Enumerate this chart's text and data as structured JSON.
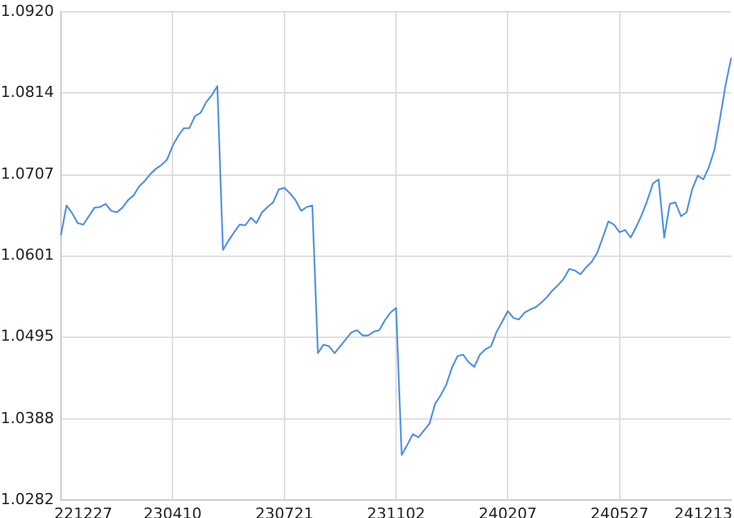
{
  "chart_data": {
    "type": "line",
    "categories": [
      null,
      null,
      null,
      null,
      "221227",
      null,
      null,
      null,
      null,
      null,
      null,
      null,
      null,
      null,
      null,
      null,
      null,
      null,
      null,
      null,
      "230410",
      null,
      null,
      null,
      null,
      null,
      null,
      null,
      null,
      null,
      null,
      null,
      null,
      null,
      null,
      null,
      null,
      null,
      null,
      null,
      "230721",
      null,
      null,
      null,
      null,
      null,
      null,
      null,
      null,
      null,
      null,
      null,
      null,
      null,
      null,
      null,
      null,
      null,
      null,
      null,
      "231102",
      null,
      null,
      null,
      null,
      null,
      null,
      null,
      null,
      null,
      null,
      null,
      null,
      null,
      null,
      null,
      null,
      null,
      null,
      null,
      "240207",
      null,
      null,
      null,
      null,
      null,
      null,
      null,
      null,
      null,
      null,
      null,
      null,
      null,
      null,
      null,
      null,
      null,
      null,
      null,
      "240527",
      null,
      null,
      null,
      null,
      null,
      null,
      null,
      null,
      null,
      null,
      null,
      null,
      null,
      null,
      "241213",
      null,
      null,
      null,
      null,
      null
    ],
    "series": [
      {
        "color": "#4f8fe6",
        "values": [
          1.0628,
          1.0667,
          1.0657,
          1.0644,
          1.0642,
          1.0653,
          1.0664,
          1.0665,
          1.0669,
          1.066,
          1.0658,
          1.0664,
          1.0674,
          1.068,
          1.0692,
          1.0699,
          1.0708,
          1.0715,
          1.072,
          1.0727,
          1.0745,
          1.0758,
          1.0768,
          1.0768,
          1.0784,
          1.0788,
          1.0802,
          1.0811,
          1.0823,
          1.0609,
          1.0621,
          1.0632,
          1.0642,
          1.0641,
          1.0651,
          1.0644,
          1.0658,
          1.0665,
          1.0671,
          1.0688,
          1.069,
          1.0683,
          1.0674,
          1.066,
          1.0665,
          1.0667,
          1.0474,
          1.0485,
          1.0483,
          1.0474,
          1.0483,
          1.0492,
          1.0501,
          1.0504,
          1.0497,
          1.0497,
          1.0502,
          1.0504,
          1.0517,
          1.0527,
          1.0533,
          1.0341,
          1.0354,
          1.0368,
          1.0364,
          1.0373,
          1.0382,
          1.0408,
          1.0419,
          1.0433,
          1.0455,
          1.047,
          1.0472,
          1.0462,
          1.0456,
          1.0472,
          1.0479,
          1.0483,
          1.0502,
          1.0515,
          1.0529,
          1.052,
          1.0518,
          1.0527,
          1.0531,
          1.0534,
          1.054,
          1.0547,
          1.0556,
          1.0563,
          1.0571,
          1.0584,
          1.0582,
          1.0577,
          1.0586,
          1.0593,
          1.0605,
          1.0625,
          1.0646,
          1.0642,
          1.0632,
          1.0635,
          1.0625,
          1.0639,
          1.0655,
          1.0674,
          1.0696,
          1.0701,
          1.0625,
          1.0669,
          1.0671,
          1.0653,
          1.0658,
          1.0688,
          1.0706,
          1.0701,
          1.0717,
          1.074,
          1.0781,
          1.0825,
          1.086
        ]
      }
    ],
    "ylim": [
      1.0282,
      1.092
    ],
    "yticks": [
      1.0282,
      1.0388,
      1.0495,
      1.0601,
      1.0707,
      1.0814,
      {
        "value": 1.092,
        "label": "1.0920"
      }
    ],
    "grid": true,
    "legend": false,
    "marker": "none",
    "line_style": "solid"
  }
}
